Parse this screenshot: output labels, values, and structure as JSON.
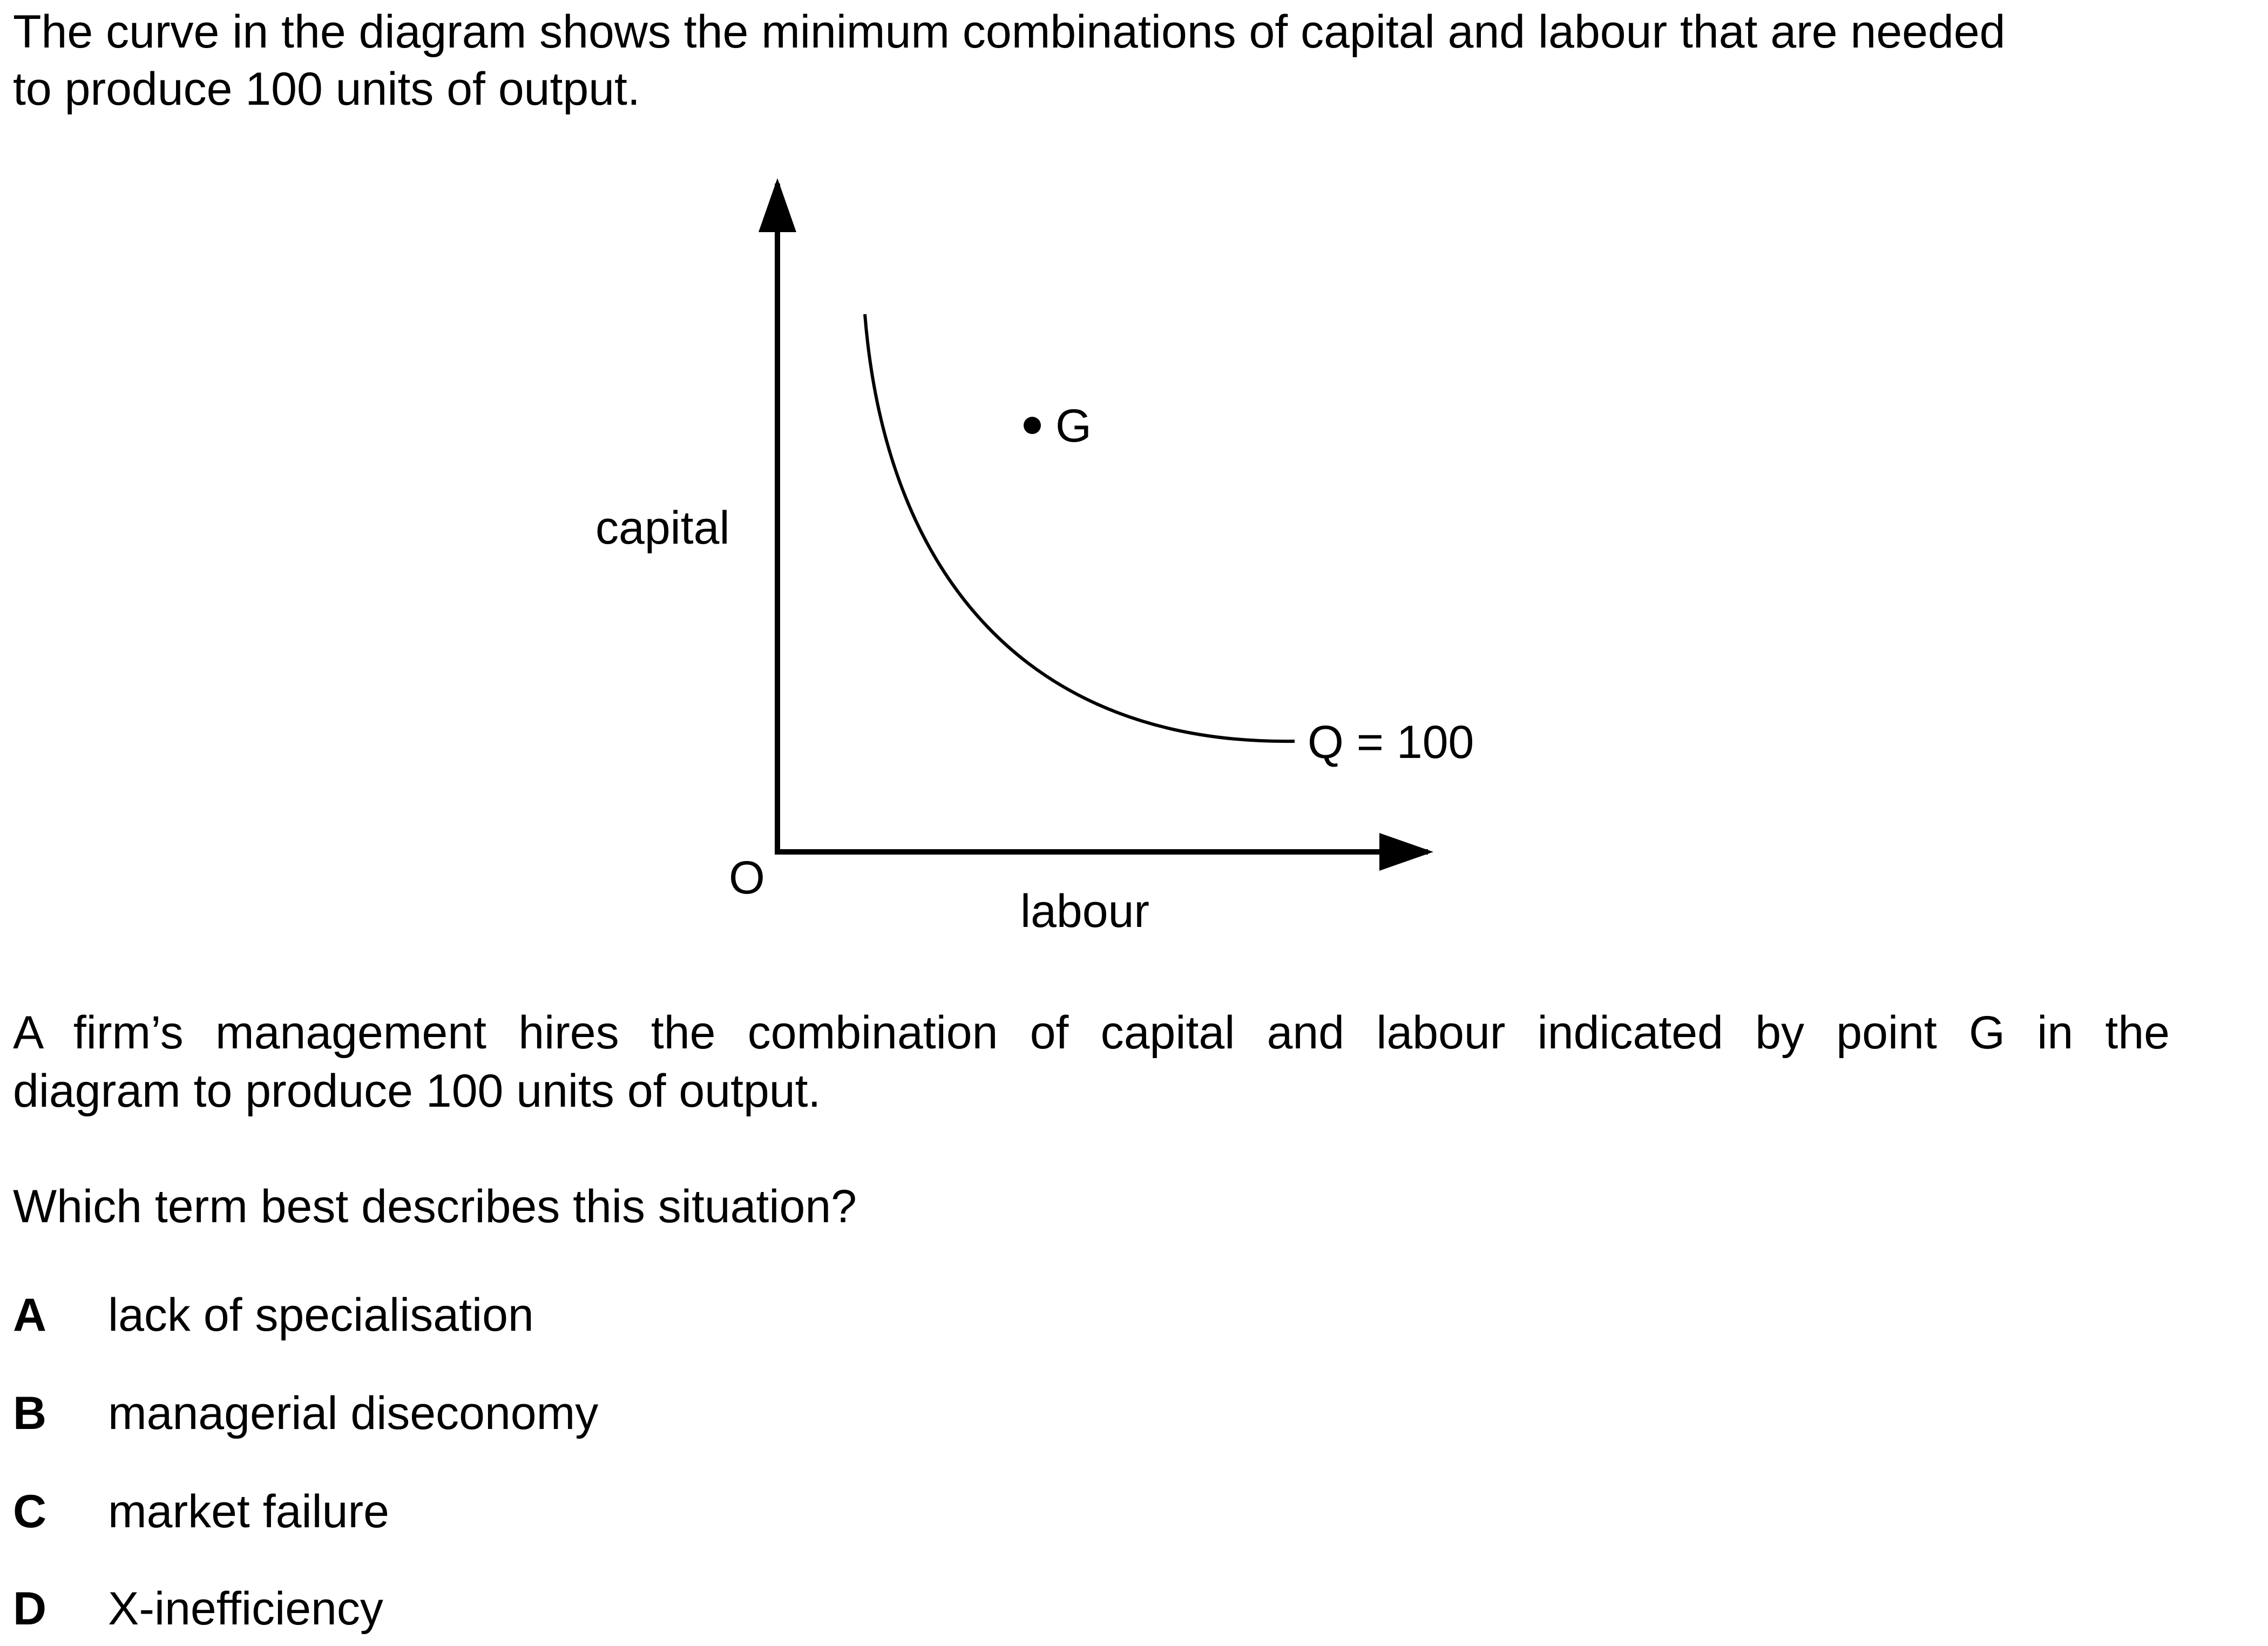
{
  "question": {
    "intro_line_1": "The curve in the diagram shows the minimum combinations of capital and labour that are needed",
    "intro_line_2": "to produce 100 units of output.",
    "context_line_1": "A firm’s management hires the combination of capital and labour indicated by point G in the",
    "context_line_2": "diagram to produce 100 units of output.",
    "prompt": "Which term best describes this situation?"
  },
  "diagram": {
    "y_axis_label": "capital",
    "x_axis_label": "labour",
    "origin_label": "O",
    "curve_label": "Q = 100",
    "point_label": "G"
  },
  "options": [
    {
      "letter": "A",
      "text": "lack of specialisation"
    },
    {
      "letter": "B",
      "text": "managerial diseconomy"
    },
    {
      "letter": "C",
      "text": "market failure"
    },
    {
      "letter": "D",
      "text": "X-inefficiency"
    }
  ]
}
